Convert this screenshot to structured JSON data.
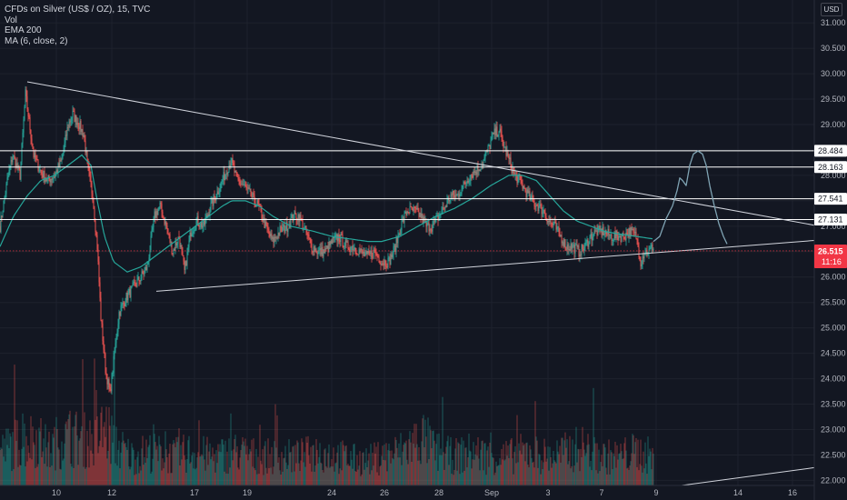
{
  "legend": {
    "symbol_line": "CFDs on Silver (US$ / OZ), 15, TVC",
    "vol": "Vol",
    "ema": "EMA 200",
    "ma": "MA (6, close, 2)"
  },
  "currency": "USD",
  "colors": {
    "background": "#131722",
    "grid": "#1e222d",
    "text": "#b2b5be",
    "up": "#26a69a",
    "down": "#ef5350",
    "ema": "#26a69a",
    "price_tag": "#f23645",
    "levels": "#ffffff"
  },
  "chart_data": {
    "type": "candlestick",
    "y_axis": {
      "ticks": [
        "31.000",
        "30.500",
        "30.000",
        "29.500",
        "29.000",
        "28.500",
        "28.000",
        "27.500",
        "27.000",
        "26.500",
        "26.000",
        "25.500",
        "25.000",
        "24.500",
        "24.000",
        "23.500",
        "23.000",
        "22.500",
        "22.000"
      ],
      "ylim": [
        21.9,
        31.45
      ]
    },
    "x_axis": {
      "ticks": [
        {
          "label": "10",
          "i": 62
        },
        {
          "label": "12",
          "i": 123
        },
        {
          "label": "17",
          "i": 214
        },
        {
          "label": "19",
          "i": 272
        },
        {
          "label": "24",
          "i": 365
        },
        {
          "label": "26",
          "i": 423
        },
        {
          "label": "28",
          "i": 483
        },
        {
          "label": "Sep",
          "i": 541
        },
        {
          "label": "3",
          "i": 603
        },
        {
          "label": "7",
          "i": 662
        },
        {
          "label": "9",
          "i": 722
        },
        {
          "label": "14",
          "i": 812
        },
        {
          "label": "16",
          "i": 872
        }
      ],
      "range": [
        0,
        896
      ]
    },
    "price_anchors": [
      [
        0,
        27.0
      ],
      [
        8,
        27.9
      ],
      [
        14,
        28.4
      ],
      [
        22,
        28.0
      ],
      [
        28,
        29.6
      ],
      [
        31,
        29.2
      ],
      [
        37,
        28.4
      ],
      [
        44,
        28.1
      ],
      [
        52,
        27.9
      ],
      [
        60,
        28.0
      ],
      [
        68,
        28.3
      ],
      [
        75,
        29.0
      ],
      [
        80,
        29.2
      ],
      [
        87,
        29.0
      ],
      [
        92,
        28.8
      ],
      [
        97,
        28.1
      ],
      [
        102,
        27.6
      ],
      [
        107,
        26.6
      ],
      [
        111,
        25.2
      ],
      [
        116,
        24.2
      ],
      [
        121,
        23.7
      ],
      [
        126,
        24.5
      ],
      [
        131,
        25.3
      ],
      [
        139,
        25.6
      ],
      [
        147,
        25.8
      ],
      [
        155,
        26.0
      ],
      [
        162,
        26.2
      ],
      [
        170,
        27.2
      ],
      [
        176,
        27.4
      ],
      [
        183,
        27.0
      ],
      [
        190,
        26.5
      ],
      [
        197,
        26.8
      ],
      [
        203,
        26.1
      ],
      [
        210,
        26.9
      ],
      [
        217,
        27.1
      ],
      [
        224,
        27.0
      ],
      [
        232,
        27.4
      ],
      [
        240,
        27.7
      ],
      [
        247,
        28.0
      ],
      [
        254,
        28.3
      ],
      [
        261,
        27.9
      ],
      [
        268,
        27.8
      ],
      [
        276,
        27.6
      ],
      [
        284,
        27.4
      ],
      [
        292,
        27.0
      ],
      [
        300,
        26.7
      ],
      [
        308,
        26.9
      ],
      [
        316,
        27.0
      ],
      [
        323,
        27.2
      ],
      [
        329,
        27.2
      ],
      [
        336,
        26.9
      ],
      [
        343,
        26.6
      ],
      [
        350,
        26.5
      ],
      [
        358,
        26.5
      ],
      [
        366,
        26.7
      ],
      [
        373,
        26.8
      ],
      [
        381,
        26.6
      ],
      [
        388,
        26.6
      ],
      [
        396,
        26.5
      ],
      [
        404,
        26.4
      ],
      [
        412,
        26.5
      ],
      [
        420,
        26.3
      ],
      [
        428,
        26.3
      ],
      [
        435,
        26.6
      ],
      [
        441,
        27.0
      ],
      [
        448,
        27.3
      ],
      [
        456,
        27.3
      ],
      [
        463,
        27.2
      ],
      [
        469,
        27.0
      ],
      [
        476,
        27.0
      ],
      [
        483,
        27.2
      ],
      [
        490,
        27.4
      ],
      [
        496,
        27.6
      ],
      [
        503,
        27.6
      ],
      [
        510,
        27.8
      ],
      [
        517,
        28.0
      ],
      [
        524,
        28.1
      ],
      [
        530,
        28.2
      ],
      [
        537,
        28.5
      ],
      [
        543,
        28.8
      ],
      [
        549,
        28.9
      ],
      [
        554,
        28.6
      ],
      [
        560,
        28.3
      ],
      [
        566,
        28.0
      ],
      [
        572,
        27.9
      ],
      [
        578,
        27.7
      ],
      [
        585,
        27.5
      ],
      [
        592,
        27.4
      ],
      [
        598,
        27.3
      ],
      [
        604,
        27.1
      ],
      [
        610,
        27.0
      ],
      [
        617,
        26.8
      ],
      [
        623,
        26.6
      ],
      [
        630,
        26.6
      ],
      [
        637,
        26.5
      ],
      [
        644,
        26.6
      ],
      [
        650,
        26.8
      ],
      [
        657,
        26.9
      ],
      [
        664,
        26.9
      ],
      [
        672,
        26.8
      ],
      [
        679,
        26.8
      ],
      [
        686,
        26.8
      ],
      [
        693,
        26.9
      ],
      [
        700,
        26.8
      ],
      [
        705,
        26.3
      ],
      [
        709,
        26.5
      ],
      [
        714,
        26.5
      ],
      [
        719,
        26.6
      ]
    ],
    "ema_anchors": [
      [
        0,
        26.6
      ],
      [
        15,
        27.2
      ],
      [
        30,
        27.6
      ],
      [
        45,
        27.9
      ],
      [
        60,
        28.0
      ],
      [
        75,
        28.2
      ],
      [
        90,
        28.4
      ],
      [
        100,
        28.2
      ],
      [
        107,
        27.5
      ],
      [
        115,
        26.8
      ],
      [
        125,
        26.3
      ],
      [
        140,
        26.1
      ],
      [
        155,
        26.2
      ],
      [
        170,
        26.4
      ],
      [
        185,
        26.6
      ],
      [
        200,
        26.8
      ],
      [
        215,
        27.0
      ],
      [
        230,
        27.2
      ],
      [
        245,
        27.4
      ],
      [
        255,
        27.5
      ],
      [
        270,
        27.5
      ],
      [
        285,
        27.4
      ],
      [
        300,
        27.2
      ],
      [
        320,
        27.0
      ],
      [
        345,
        26.9
      ],
      [
        365,
        26.8
      ],
      [
        385,
        26.75
      ],
      [
        405,
        26.7
      ],
      [
        420,
        26.7
      ],
      [
        440,
        26.8
      ],
      [
        460,
        27.0
      ],
      [
        480,
        27.2
      ],
      [
        500,
        27.35
      ],
      [
        520,
        27.55
      ],
      [
        540,
        27.8
      ],
      [
        560,
        28.0
      ],
      [
        575,
        28.0
      ],
      [
        590,
        27.9
      ],
      [
        605,
        27.6
      ],
      [
        620,
        27.3
      ],
      [
        635,
        27.1
      ],
      [
        650,
        27.0
      ],
      [
        665,
        26.9
      ],
      [
        680,
        26.85
      ],
      [
        700,
        26.8
      ],
      [
        719,
        26.75
      ]
    ],
    "volume_anchors": [
      [
        0,
        0.35
      ],
      [
        20,
        0.45
      ],
      [
        40,
        0.5
      ],
      [
        55,
        0.35
      ],
      [
        62,
        0.45
      ],
      [
        80,
        0.5
      ],
      [
        105,
        0.45
      ],
      [
        115,
        0.6
      ],
      [
        130,
        0.4
      ],
      [
        145,
        0.3
      ],
      [
        165,
        0.35
      ],
      [
        190,
        0.3
      ],
      [
        210,
        0.35
      ],
      [
        235,
        0.3
      ],
      [
        260,
        0.35
      ],
      [
        285,
        0.3
      ],
      [
        310,
        0.3
      ],
      [
        330,
        0.3
      ],
      [
        350,
        0.35
      ],
      [
        375,
        0.3
      ],
      [
        400,
        0.25
      ],
      [
        420,
        0.3
      ],
      [
        440,
        0.35
      ],
      [
        465,
        0.5
      ],
      [
        480,
        0.35
      ],
      [
        500,
        0.3
      ],
      [
        520,
        0.35
      ],
      [
        540,
        0.3
      ],
      [
        560,
        0.3
      ],
      [
        580,
        0.35
      ],
      [
        605,
        0.3
      ],
      [
        625,
        0.35
      ],
      [
        640,
        0.4
      ],
      [
        660,
        0.3
      ],
      [
        680,
        0.3
      ],
      [
        700,
        0.35
      ],
      [
        719,
        0.3
      ]
    ],
    "horizontal_levels": [
      {
        "price": 28.484,
        "label": "28.484"
      },
      {
        "price": 28.163,
        "label": "28.163"
      },
      {
        "price": 27.541,
        "label": "27.541"
      },
      {
        "price": 27.131,
        "label": "27.131"
      }
    ],
    "last_price": {
      "price": 26.515,
      "label": "26.515",
      "countdown": "11:16"
    },
    "trendlines": [
      {
        "name": "upper-trendline",
        "from": [
          30,
          29.84
        ],
        "to": [
          896,
          27.02
        ]
      },
      {
        "name": "lower-trendline",
        "from": [
          172,
          25.72
        ],
        "to": [
          896,
          26.72
        ]
      },
      {
        "name": "bottom-trendline",
        "from": [
          750,
          21.9
        ],
        "to": [
          896,
          22.25
        ]
      }
    ],
    "projection": [
      [
        719,
        26.7
      ],
      [
        726,
        26.8
      ],
      [
        733,
        27.15
      ],
      [
        740,
        27.4
      ],
      [
        745,
        27.7
      ],
      [
        748,
        27.95
      ],
      [
        751,
        27.9
      ],
      [
        755,
        27.8
      ],
      [
        759,
        28.2
      ],
      [
        763,
        28.42
      ],
      [
        768,
        28.48
      ],
      [
        773,
        28.42
      ],
      [
        777,
        28.2
      ],
      [
        781,
        27.8
      ],
      [
        786,
        27.4
      ],
      [
        791,
        27.05
      ],
      [
        796,
        26.8
      ],
      [
        800,
        26.65
      ]
    ]
  }
}
